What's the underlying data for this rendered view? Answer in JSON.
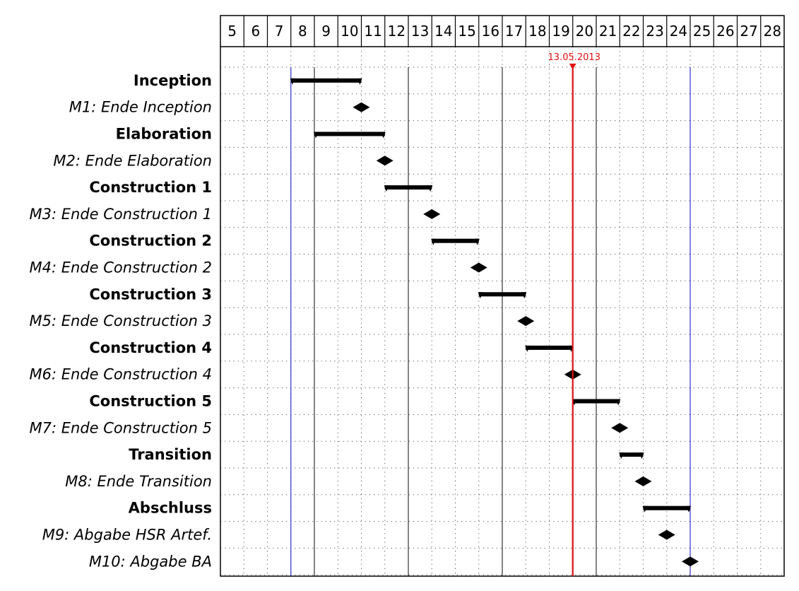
{
  "chart_data": {
    "type": "gantt",
    "title": "",
    "x_unit": "calendar week",
    "weeks": [
      5,
      6,
      7,
      8,
      9,
      10,
      11,
      12,
      13,
      14,
      15,
      16,
      17,
      18,
      19,
      20,
      21,
      22,
      23,
      24,
      25,
      26,
      27,
      28
    ],
    "today": {
      "label": "13.05.2013",
      "week": 20
    },
    "project_bounds": {
      "start_week": 8,
      "end_week": 25
    },
    "phase_separators_weeks": [
      9,
      13,
      17,
      21
    ],
    "tasks": [
      {
        "label": "Inception",
        "kind": "bar",
        "start": 8,
        "end": 11
      },
      {
        "label": "M1: Ende Inception",
        "kind": "milestone",
        "at": 11
      },
      {
        "label": "Elaboration",
        "kind": "bar",
        "start": 9,
        "end": 12
      },
      {
        "label": "M2: Ende Elaboration",
        "kind": "milestone",
        "at": 12
      },
      {
        "label": "Construction 1",
        "kind": "bar",
        "start": 12,
        "end": 14
      },
      {
        "label": "M3: Ende Construction 1",
        "kind": "milestone",
        "at": 14
      },
      {
        "label": "Construction 2",
        "kind": "bar",
        "start": 14,
        "end": 16
      },
      {
        "label": "M4: Ende Construction 2",
        "kind": "milestone",
        "at": 16
      },
      {
        "label": "Construction 3",
        "kind": "bar",
        "start": 16,
        "end": 18
      },
      {
        "label": "M5: Ende Construction 3",
        "kind": "milestone",
        "at": 18
      },
      {
        "label": "Construction 4",
        "kind": "bar",
        "start": 18,
        "end": 20
      },
      {
        "label": "M6: Ende Construction 4",
        "kind": "milestone",
        "at": 20
      },
      {
        "label": "Construction 5",
        "kind": "bar",
        "start": 20,
        "end": 22
      },
      {
        "label": "M7: Ende Construction 5",
        "kind": "milestone",
        "at": 22
      },
      {
        "label": "Transition",
        "kind": "bar",
        "start": 22,
        "end": 23
      },
      {
        "label": "M8: Ende Transition",
        "kind": "milestone",
        "at": 23
      },
      {
        "label": "Abschluss",
        "kind": "bar",
        "start": 23,
        "end": 25
      },
      {
        "label": "M9: Abgabe HSR Artef.",
        "kind": "milestone",
        "at": 24
      },
      {
        "label": "M10: Abgabe BA",
        "kind": "milestone",
        "at": 25
      }
    ],
    "colors": {
      "bar": "#000000",
      "milestone": "#000000",
      "today_line": "#e01010",
      "project_bounds_line": "#3333cc",
      "phase_separator_line": "#333333",
      "grid": "#555555",
      "frame": "#000000"
    },
    "grid": true
  }
}
